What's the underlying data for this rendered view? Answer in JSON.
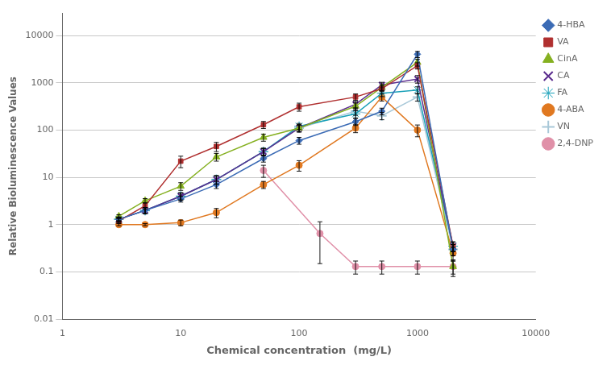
{
  "chart_data": {
    "type": "line",
    "log": true,
    "grid": "y",
    "legend": "right",
    "xlabel": "Chemical concentration  (mg/L)",
    "ylabel": "Relative Bioluminescence Values",
    "xlim": [
      1,
      10000
    ],
    "ylim": [
      0.01,
      30000
    ],
    "xticks": [
      1,
      10,
      100,
      1000,
      10000
    ],
    "yticks": [
      0.01,
      0.1,
      1,
      10,
      100,
      1000,
      10000
    ],
    "series": [
      {
        "name": "4-HBA",
        "color": "#3b6bb5",
        "marker": "diamond",
        "x": [
          3,
          5,
          10,
          20,
          50,
          100,
          300,
          500,
          1000,
          2000
        ],
        "values": [
          1.3,
          2.0,
          3.5,
          7.0,
          25,
          60,
          150,
          250,
          4000,
          0.3
        ],
        "errors": [
          0.15,
          0.3,
          0.5,
          1.2,
          4,
          10,
          25,
          40,
          600,
          0.08
        ]
      },
      {
        "name": "VA",
        "color": "#b03030",
        "marker": "square",
        "x": [
          3,
          5,
          10,
          20,
          50,
          100,
          300,
          500,
          1000,
          2000
        ],
        "values": [
          1.2,
          2.5,
          22,
          45,
          130,
          310,
          500,
          750,
          2300,
          0.35
        ],
        "errors": [
          0.12,
          0.4,
          6,
          10,
          22,
          60,
          80,
          100,
          350,
          0.08
        ]
      },
      {
        "name": "CinA",
        "color": "#85b020",
        "marker": "triangle",
        "x": [
          3,
          5,
          10,
          20,
          50,
          100,
          300,
          500,
          1000,
          2000
        ],
        "values": [
          1.5,
          3.2,
          6.5,
          27,
          70,
          110,
          320,
          800,
          2700,
          0.13
        ],
        "errors": [
          0.12,
          0.35,
          1.2,
          5,
          12,
          20,
          55,
          110,
          450,
          0.05
        ]
      },
      {
        "name": "CA",
        "color": "#5b2d8e",
        "marker": "x",
        "x": [
          3,
          5,
          10,
          20,
          50,
          100,
          300,
          500,
          1000,
          2000
        ],
        "values": [
          1.3,
          2.0,
          4.0,
          9,
          35,
          110,
          350,
          900,
          1200,
          0.35
        ],
        "errors": [
          0.1,
          0.3,
          0.7,
          1.8,
          6,
          18,
          65,
          120,
          220,
          0.08
        ]
      },
      {
        "name": "FA",
        "color": "#18a0b8",
        "marker": "star",
        "x": [
          3,
          5,
          10,
          20,
          50,
          100,
          300,
          500,
          1000,
          2000
        ],
        "values": [
          1.3,
          2.0,
          4.0,
          9,
          35,
          120,
          220,
          600,
          700,
          0.35
        ],
        "errors": [
          0.1,
          0.3,
          0.7,
          1.8,
          6,
          18,
          40,
          90,
          120,
          0.08
        ]
      },
      {
        "name": "4-ABA",
        "color": "#e07820",
        "marker": "circle",
        "x": [
          3,
          5,
          10,
          20,
          50,
          100,
          300,
          500,
          1000,
          2000
        ],
        "values": [
          1.0,
          1.0,
          1.1,
          1.8,
          7,
          18,
          110,
          500,
          100,
          0.25
        ],
        "errors": [
          0.05,
          0.05,
          0.15,
          0.4,
          1.2,
          4.5,
          22,
          90,
          28,
          0.08
        ]
      },
      {
        "name": "VN",
        "color": "#a8c8d8",
        "marker": "plus",
        "x": [
          3,
          5,
          10,
          20,
          50,
          100,
          300,
          500,
          1000,
          2000
        ],
        "values": [
          1.3,
          2.0,
          4.0,
          9,
          35,
          110,
          250,
          200,
          500,
          0.3
        ],
        "errors": [
          0.1,
          0.3,
          0.7,
          1.8,
          6,
          18,
          45,
          35,
          90,
          0.08
        ]
      },
      {
        "name": "2,4-DNP",
        "color": "#e090a8",
        "marker": "circle",
        "x": [
          50,
          150,
          300,
          500,
          1000,
          2000
        ],
        "values": [
          14,
          0.65,
          0.13,
          0.13,
          0.13,
          0.13
        ],
        "errors": [
          4.0,
          0.5,
          0.04,
          0.04,
          0.04,
          0.04
        ]
      }
    ]
  }
}
